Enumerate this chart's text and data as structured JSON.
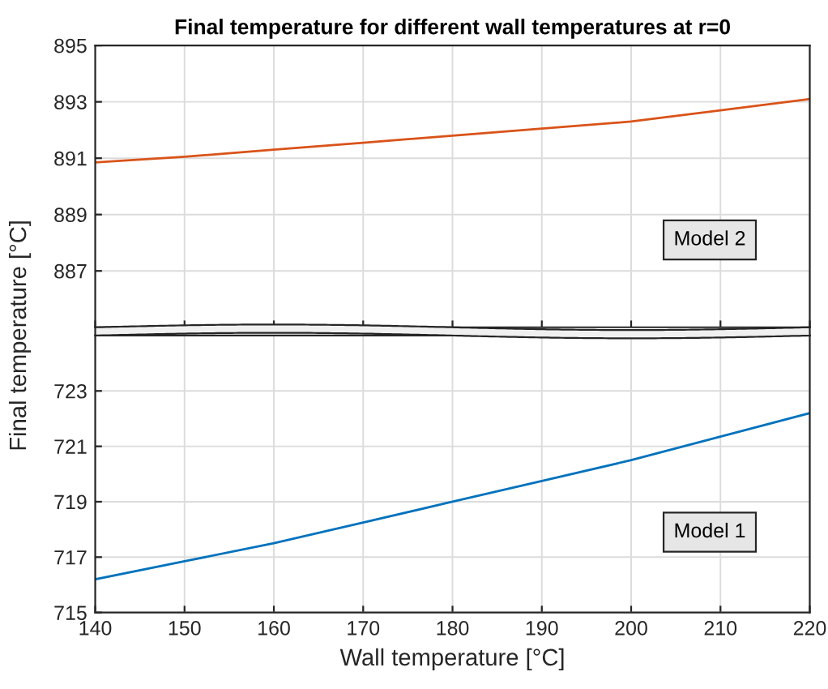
{
  "chart_data": [
    {
      "type": "line",
      "title": "Final temperature for different wall temperatures at r=0",
      "x": [
        140,
        150,
        160,
        170,
        180,
        190,
        200,
        210,
        220
      ],
      "series": [
        {
          "color": "#d95319",
          "values": [
            890.85,
            891.05,
            891.3,
            891.55,
            891.8,
            892.05,
            892.3,
            892.7,
            893.1
          ]
        }
      ],
      "xlim": [
        140,
        220
      ],
      "xticks": [
        140,
        150,
        160,
        170,
        180,
        190,
        200,
        210,
        220
      ],
      "ylim": [
        885,
        895
      ],
      "yticks": [
        887,
        889,
        891,
        893,
        895
      ],
      "grid": true,
      "tick_labels": "y",
      "annotations": [
        "Model 2"
      ]
    },
    {
      "type": "line",
      "x": [
        140,
        150,
        160,
        170,
        180,
        190,
        200,
        210,
        220
      ],
      "xlabel": "Wall temperature [°C]",
      "ylabel": "Final temperature [°C]",
      "series": [
        {
          "color": "#0072bd",
          "values": [
            716.2,
            716.85,
            717.5,
            718.25,
            719.0,
            719.75,
            720.5,
            721.35,
            722.2
          ]
        }
      ],
      "xlim": [
        140,
        220
      ],
      "xticks": [
        140,
        150,
        160,
        170,
        180,
        190,
        200,
        210,
        220
      ],
      "ylim": [
        715,
        725
      ],
      "yticks": [
        715,
        717,
        719,
        721,
        723
      ],
      "grid": true,
      "annotations": [
        "Model 1"
      ]
    }
  ]
}
